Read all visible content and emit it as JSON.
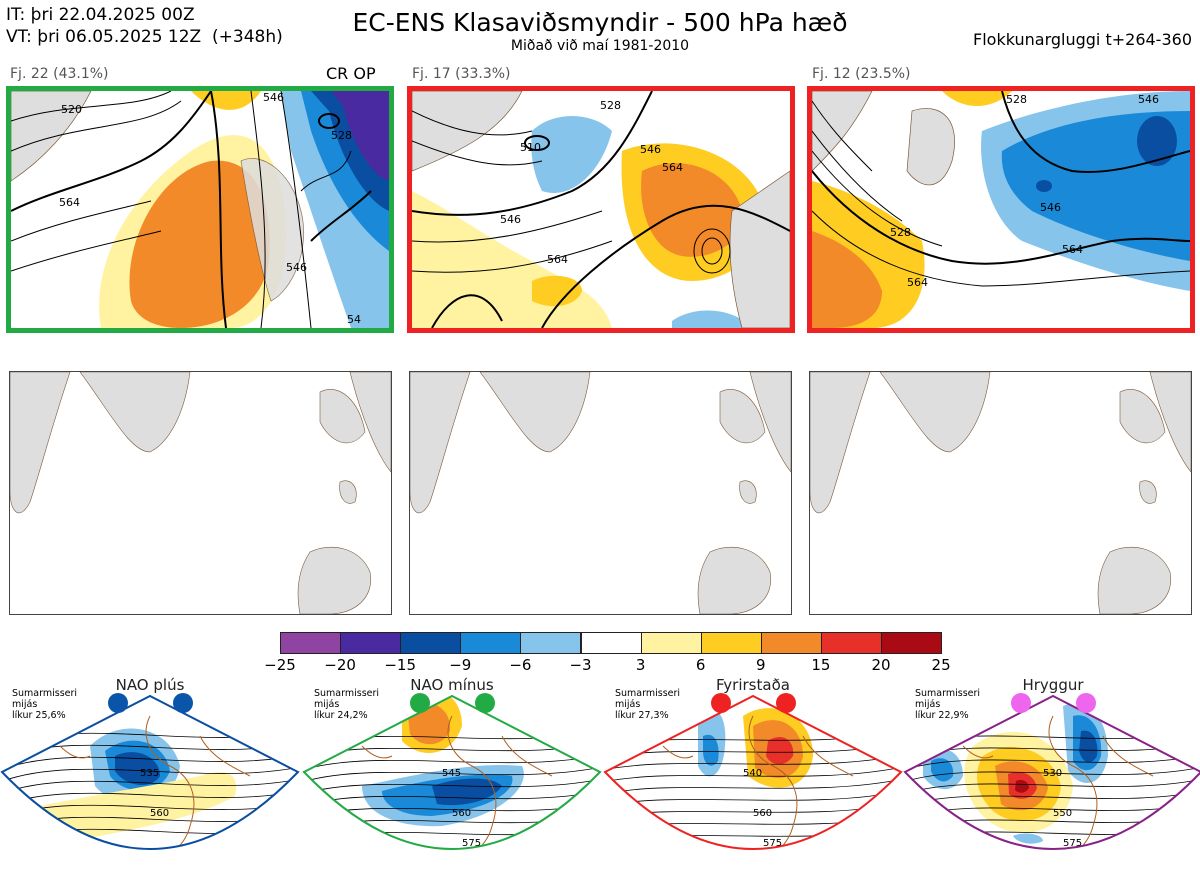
{
  "header": {
    "it_line": "IT: þri 22.04.2025 00Z",
    "vt_line": "VT: þri 06.05.2025 12Z  (+348h)",
    "title": "EC-ENS Klasaviðsmyndir - 500 hPa hæð",
    "subtitle": "Miðað við maí 1981-2010",
    "window_label": "Flokkunargluggi t+264-360"
  },
  "clusters": [
    {
      "label": "Fj. 22 (43.1%)",
      "badge": "CR OP",
      "border_color": "#22aa44",
      "contour_labels": [
        "520",
        "546",
        "564",
        "546",
        "528",
        "54"
      ]
    },
    {
      "label": "Fj. 17 (33.3%)",
      "badge": "",
      "border_color": "#ee2222",
      "contour_labels": [
        "528",
        "510",
        "546",
        "564",
        "546",
        "564"
      ]
    },
    {
      "label": "Fj. 12 (23.5%)",
      "badge": "",
      "border_color": "#ee2222",
      "contour_labels": [
        "528",
        "546",
        "528",
        "546",
        "564",
        "564"
      ]
    }
  ],
  "colorbar": {
    "ticks": [
      "−25",
      "−20",
      "−15",
      "−9",
      "−6",
      "−3",
      "3",
      "6",
      "9",
      "15",
      "20",
      "25"
    ],
    "colors": [
      "#8e44a0",
      "#4a2aa0",
      "#0a4ea2",
      "#1a8ad8",
      "#86c4ec",
      "#ffffff",
      "#fff2a0",
      "#ffcc22",
      "#f28a2a",
      "#e8302a",
      "#aa0a14"
    ]
  },
  "regimes": [
    {
      "title": "NAO plús",
      "season": "Sumarmisseri",
      "line2": "mijás",
      "prob": "líkur 25,6%",
      "dot_color": "#0a55aa",
      "frame_color": "#0a4ea2",
      "labels": [
        "535",
        "560"
      ]
    },
    {
      "title": "NAO mínus",
      "season": "Sumarmisseri",
      "line2": "mijás",
      "prob": "líkur 24,2%",
      "dot_color": "#22aa44",
      "frame_color": "#22aa44",
      "labels": [
        "545",
        "560",
        "575"
      ]
    },
    {
      "title": "Fyrirstaða",
      "season": "Sumarmisseri",
      "line2": "mijás",
      "prob": "líkur 27,3%",
      "dot_color": "#ee2222",
      "frame_color": "#ee2222",
      "labels": [
        "540",
        "560",
        "575"
      ]
    },
    {
      "title": "Hryggur",
      "season": "Sumarmisseri",
      "line2": "mijás",
      "prob": "líkur 22,9%",
      "dot_color": "#ee66ee",
      "frame_color": "#882288",
      "labels": [
        "530",
        "550",
        "575"
      ]
    }
  ]
}
